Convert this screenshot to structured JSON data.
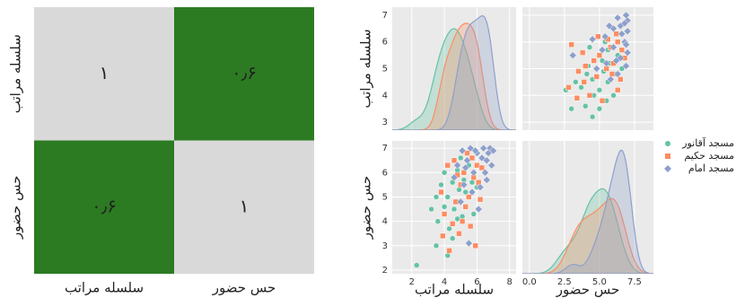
{
  "chart_data": [
    {
      "type": "heatmap",
      "x_categories": [
        "سلسله مراتب",
        "حس حضور"
      ],
      "y_categories": [
        "سلسله مراتب",
        "حس حضور"
      ],
      "values": [
        [
          1,
          0.6
        ],
        [
          0.6,
          1
        ]
      ],
      "value_labels": [
        [
          "۱",
          "۰٫۶"
        ],
        [
          "۰٫۶",
          "۱"
        ]
      ],
      "clim": [
        0.6,
        1
      ],
      "colormap": [
        "#2c7b22",
        "#d9d9d9"
      ]
    },
    {
      "type": "pairplot",
      "variables": [
        "سلسله مراتب",
        "حس حضور"
      ],
      "xlims": [
        [
          0.8,
          8.4
        ],
        [
          -0.5,
          8.85
        ]
      ],
      "xticks": [
        [
          2,
          4,
          6,
          8
        ],
        [
          {
            "value": 0,
            "label": "0.0"
          },
          2.5,
          {
            "value": 5,
            "label": "5.0"
          },
          7.5
        ]
      ],
      "ylims": [
        [
          2.7,
          7.3
        ],
        [
          1.85,
          7.3
        ]
      ],
      "yticks": [
        [
          3,
          4,
          5,
          6,
          7
        ],
        [
          2,
          3,
          4,
          5,
          6,
          7
        ]
      ],
      "grid": true,
      "legend": "right",
      "series": [
        {
          "name": "مسجد آقانور",
          "color": "#66c2a5",
          "marker": "circle",
          "values": [
            [
              2.3,
              4.2,
              3.5,
              4.5,
              3.6,
              4.3,
              4.8,
              3.2,
              4.0,
              4.6,
              5.1,
              3.5,
              4.2,
              4.9,
              5.3,
              3.8,
              4.5,
              5.2,
              5.7,
              4.0,
              4.8,
              5.5,
              5.0,
              6.0,
              5.8
            ],
            [
              2.2,
              2.6,
              3.0,
              3.3,
              4.0,
              3.7,
              4.1,
              4.5,
              4.6,
              4.5,
              4.2,
              5.0,
              5.0,
              5.3,
              5.2,
              5.5,
              5.6,
              5.7,
              5.6,
              6.0,
              6.1,
              6.3,
              6.6,
              5.4,
              4.3
            ]
          ]
        },
        {
          "name": "مسجد حکیم",
          "color": "#fc8d62",
          "marker": "square",
          "values": [
            [
              3.8,
              4.0,
              4.3,
              4.5,
              4.7,
              4.9,
              5.0,
              5.2,
              5.3,
              5.5,
              5.6,
              5.8,
              6.0,
              6.2,
              4.6,
              4.2,
              5.4,
              6.1,
              3.9,
              5.1,
              5.9,
              4.8,
              5.7,
              6.3
            ],
            [
              5.2,
              4.3,
              2.8,
              3.9,
              4.8,
              3.5,
              5.5,
              6.0,
              4.6,
              5.0,
              3.8,
              5.8,
              6.3,
              4.9,
              6.5,
              6.3,
              6.8,
              5.6,
              3.4,
              4.0,
              3.0,
              5.9,
              6.6,
              6.2
            ]
          ]
        },
        {
          "name": "مسجد امام",
          "color": "#8da0cb",
          "marker": "diamond",
          "values": [
            [
              4.6,
              4.8,
              5.0,
              5.2,
              5.4,
              5.6,
              5.8,
              6.0,
              6.2,
              6.4,
              6.6,
              6.8,
              7.0,
              6.5,
              6.1,
              5.5,
              5.9,
              6.3,
              6.7,
              5.3,
              5.7,
              6.9,
              5.1,
              6.6
            ],
            [
              5.8,
              6.3,
              4.8,
              5.5,
              6.5,
              7.0,
              6.0,
              6.8,
              5.4,
              7.0,
              6.5,
              7.0,
              6.9,
              6.0,
              4.5,
              3.1,
              6.9,
              6.6,
              6.8,
              6.2,
              5.2,
              6.3,
              6.9,
              5.7
            ]
          ]
        }
      ]
    }
  ]
}
